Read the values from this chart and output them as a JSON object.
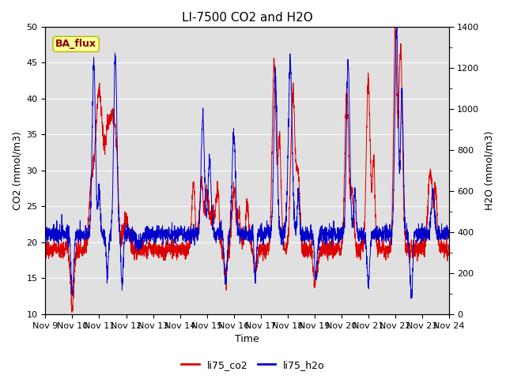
{
  "title": "LI-7500 CO2 and H2O",
  "xlabel": "Time",
  "ylabel_left": "CO2 (mmol/m3)",
  "ylabel_right": "H2O (mmol/m3)",
  "ylim_left": [
    10,
    50
  ],
  "ylim_right": [
    0,
    1400
  ],
  "yticks_left": [
    10,
    15,
    20,
    25,
    30,
    35,
    40,
    45,
    50
  ],
  "yticks_right": [
    0,
    200,
    400,
    600,
    800,
    1000,
    1200,
    1400
  ],
  "x_tick_labels": [
    "Nov 9",
    "Nov 10",
    "Nov 11",
    "Nov 12",
    "Nov 13",
    "Nov 14",
    "Nov 15",
    "Nov 16",
    "Nov 17",
    "Nov 18",
    "Nov 19",
    "Nov 20",
    "Nov 21",
    "Nov 22",
    "Nov 23",
    "Nov 24"
  ],
  "fig_bg_color": "#ffffff",
  "plot_bg_color": "#e0e0e0",
  "annotation_text": "BA_flux",
  "annotation_color": "#8b0000",
  "annotation_bg": "#ffff99",
  "annotation_edge": "#b8b800",
  "line_co2_color": "#dd0000",
  "line_h2o_color": "#0000cc",
  "legend_co2": "li75_co2",
  "legend_h2o": "li75_h2o",
  "title_fontsize": 11,
  "axis_label_fontsize": 9,
  "tick_fontsize": 8,
  "legend_fontsize": 9,
  "annotation_fontsize": 9,
  "grid_color": "#ffffff",
  "line_width": 0.7
}
